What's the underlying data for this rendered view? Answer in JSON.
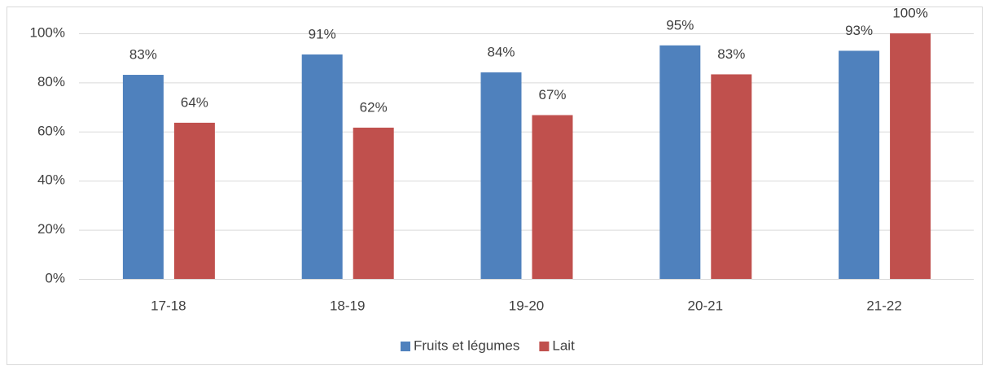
{
  "chart_data": {
    "type": "bar",
    "categories": [
      "17-18",
      "18-19",
      "19-20",
      "20-21",
      "21-22"
    ],
    "series": [
      {
        "name": "Fruits et légumes",
        "color": "#4f81bd",
        "values": [
          83.1,
          91.4,
          84.1,
          95.1,
          92.9
        ],
        "value_labels": [
          "83%",
          "91%",
          "84%",
          "95%",
          "93%"
        ]
      },
      {
        "name": "Lait",
        "color": "#c0504d",
        "values": [
          63.6,
          61.6,
          66.7,
          83.3,
          100
        ],
        "value_labels": [
          "64%",
          "62%",
          "67%",
          "83%",
          "100%"
        ]
      }
    ],
    "ylim": [
      0,
      100
    ],
    "yticks": [
      {
        "value": 0,
        "label": "0%"
      },
      {
        "value": 20,
        "label": "20%"
      },
      {
        "value": 40,
        "label": "40%"
      },
      {
        "value": 60,
        "label": "60%"
      },
      {
        "value": 80,
        "label": "80%"
      },
      {
        "value": 100,
        "label": "100%"
      }
    ],
    "grid": true,
    "legend": "bottom"
  }
}
